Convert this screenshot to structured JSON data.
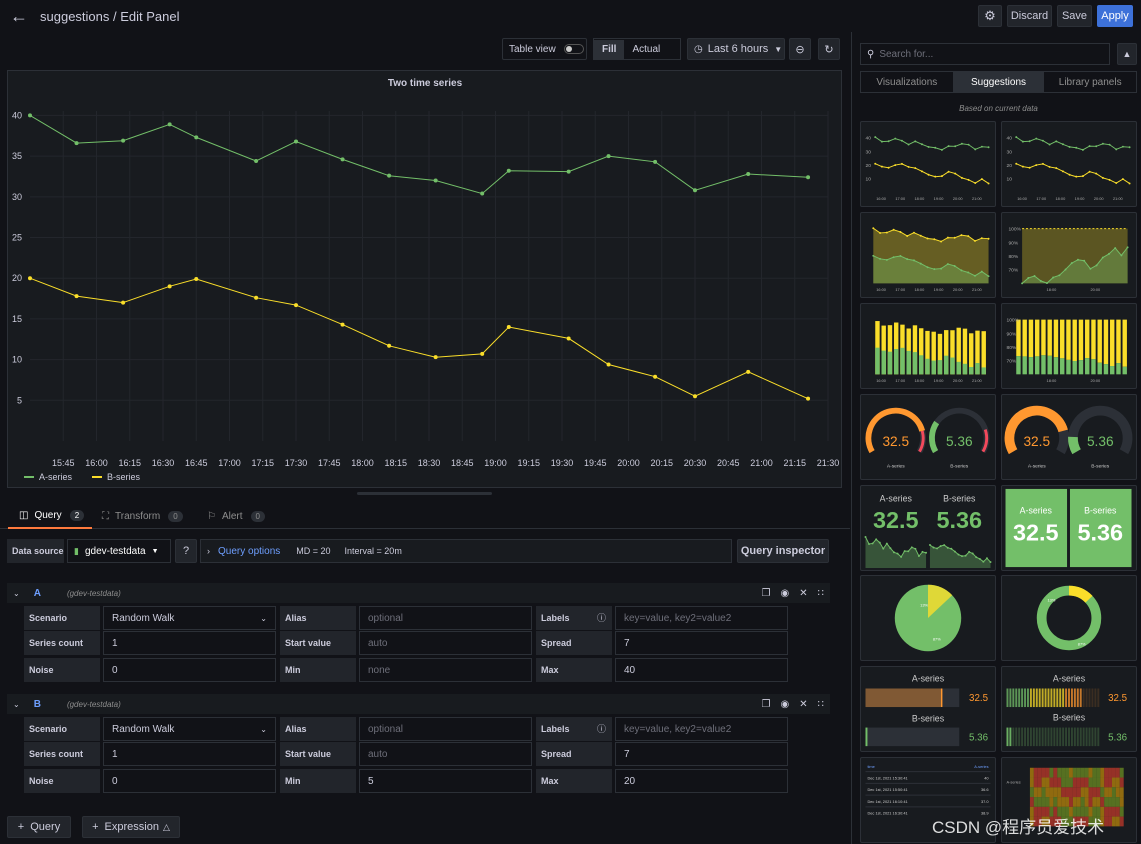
{
  "header": {
    "title": "suggestions / Edit Panel",
    "discard": "Discard",
    "save": "Save",
    "apply": "Apply"
  },
  "toolbar": {
    "table_view": "Table view",
    "fill": "Fill",
    "actual": "Actual",
    "time_range": "Last 6 hours"
  },
  "colors": {
    "green": "#73bf69",
    "yellow": "#fade2a",
    "orange": "#ff9830",
    "accent": "#3d71d9",
    "link": "#6e9fff"
  },
  "chart_data": {
    "type": "line",
    "title": "Two time series",
    "x": [
      "15:30",
      "15:45",
      "16:00",
      "16:15",
      "16:30",
      "16:45",
      "17:00",
      "17:15",
      "17:30",
      "17:45",
      "18:00",
      "18:15",
      "18:30",
      "18:45",
      "19:00",
      "19:15",
      "19:30",
      "19:45",
      "20:00",
      "20:15",
      "20:30",
      "20:45",
      "21:00",
      "21:15",
      "21:30"
    ],
    "xtick_labels": [
      "15:45",
      "16:00",
      "16:15",
      "16:30",
      "16:45",
      "17:00",
      "17:15",
      "17:30",
      "17:45",
      "18:00",
      "18:15",
      "18:30",
      "18:45",
      "19:00",
      "19:15",
      "19:30",
      "19:45",
      "20:00",
      "20:15",
      "20:30",
      "20:45",
      "21:00",
      "21:15",
      "21:30"
    ],
    "yticks": [
      5,
      10,
      15,
      20,
      25,
      30,
      35,
      40
    ],
    "ylim": [
      0,
      43
    ],
    "series": [
      {
        "name": "A-series",
        "color": "#73bf69",
        "points": [
          [
            "15:30",
            40
          ],
          [
            "15:51",
            36.6
          ],
          [
            "16:12",
            36.9
          ],
          [
            "16:33",
            38.9
          ],
          [
            "16:45",
            37.3
          ],
          [
            "17:12",
            34.4
          ],
          [
            "17:30",
            36.8
          ],
          [
            "17:51",
            34.6
          ],
          [
            "18:12",
            32.6
          ],
          [
            "18:33",
            32.0
          ],
          [
            "18:54",
            30.4
          ],
          [
            "19:06",
            33.2
          ],
          [
            "19:33",
            33.1
          ],
          [
            "19:51",
            35.0
          ],
          [
            "20:12",
            34.3
          ],
          [
            "20:30",
            30.8
          ],
          [
            "20:54",
            32.8
          ],
          [
            "21:21",
            32.4
          ]
        ]
      },
      {
        "name": "B-series",
        "color": "#fade2a",
        "points": [
          [
            "15:30",
            20
          ],
          [
            "15:51",
            17.8
          ],
          [
            "16:12",
            17.0
          ],
          [
            "16:33",
            19.0
          ],
          [
            "16:45",
            19.9
          ],
          [
            "17:12",
            17.6
          ],
          [
            "17:30",
            16.7
          ],
          [
            "17:51",
            14.3
          ],
          [
            "18:12",
            11.7
          ],
          [
            "18:33",
            10.3
          ],
          [
            "18:54",
            10.7
          ],
          [
            "19:06",
            14.0
          ],
          [
            "19:33",
            12.6
          ],
          [
            "19:51",
            9.4
          ],
          [
            "20:12",
            7.9
          ],
          [
            "20:30",
            5.5
          ],
          [
            "20:54",
            8.5
          ],
          [
            "21:21",
            5.2
          ]
        ]
      }
    ],
    "legend": "bottom-left",
    "grid": true
  },
  "tabs": [
    {
      "label": "Query",
      "count": "2"
    },
    {
      "label": "Transform",
      "count": "0"
    },
    {
      "label": "Alert",
      "count": "0"
    }
  ],
  "datasource": {
    "label": "Data source",
    "value": "gdev-testdata",
    "query_options": "Query options",
    "md": "MD = 20",
    "interval": "Interval = 20m",
    "inspector": "Query inspector"
  },
  "queries": [
    {
      "ref": "A",
      "source": "(gdev-testdata)",
      "scenario_label": "Scenario",
      "scenario": "Random Walk",
      "alias_label": "Alias",
      "alias_ph": "optional",
      "labels_label": "Labels",
      "labels_ph": "key=value, key2=value2",
      "series_count_label": "Series count",
      "series_count": "1",
      "start_value_label": "Start value",
      "start_value_ph": "auto",
      "spread_label": "Spread",
      "spread": "7",
      "noise_label": "Noise",
      "noise": "0",
      "min_label": "Min",
      "min": "none",
      "max_label": "Max",
      "max": "40"
    },
    {
      "ref": "B",
      "source": "(gdev-testdata)",
      "scenario_label": "Scenario",
      "scenario": "Random Walk",
      "alias_label": "Alias",
      "alias_ph": "optional",
      "labels_label": "Labels",
      "labels_ph": "key=value, key2=value2",
      "series_count_label": "Series count",
      "series_count": "1",
      "start_value_label": "Start value",
      "start_value_ph": "auto",
      "spread_label": "Spread",
      "spread": "7",
      "noise_label": "Noise",
      "noise": "0",
      "min_label": "Min",
      "min": "5",
      "max_label": "Max",
      "max": "20"
    }
  ],
  "footer": {
    "add_query": "Query",
    "add_expression": "Expression"
  },
  "right": {
    "search_ph": "Search for...",
    "tabs": [
      "Visualizations",
      "Suggestions",
      "Library panels"
    ],
    "based_on": "Based on current data",
    "mini_times": [
      "16:00",
      "17:00",
      "18:00",
      "19:00",
      "20:00",
      "21:00"
    ],
    "mini_times_b": [
      "18:00",
      "20:00"
    ],
    "pct_ticks": [
      "100%",
      "90%",
      "80%",
      "70%"
    ],
    "gauge_a": "32.5",
    "gauge_b": "5.36",
    "series_a": "A-series",
    "series_b": "B-series",
    "pie_a_pct": "13%",
    "pie_b_pct": "87%",
    "table_header": [
      "time",
      "A-series"
    ],
    "table_rows": [
      [
        "Dec 1st, 2021 15:30:41",
        "40"
      ],
      [
        "Dec 1st, 2021 15:50:41",
        "36.6"
      ],
      [
        "Dec 1st, 2021 16:10:41",
        "37.0"
      ],
      [
        "Dec 1st, 2021 16:30:41",
        "38.9"
      ]
    ]
  },
  "watermark": "CSDN @程序员爱技术"
}
